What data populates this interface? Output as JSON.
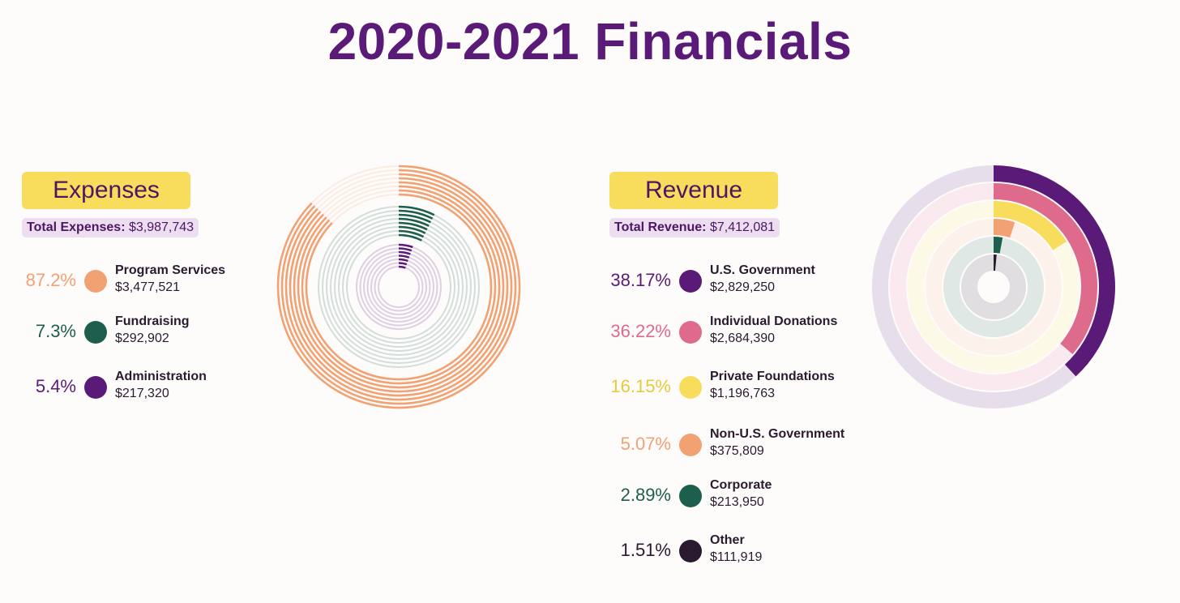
{
  "title": "2020-2021 Financials",
  "expenses": {
    "heading": "Expenses",
    "total_label": "Total Expenses:",
    "total_value": "$3,987,743",
    "items": [
      {
        "pct": "87.2%",
        "name": "Program Services",
        "amount": "$3,477,521",
        "color": "#f2a173"
      },
      {
        "pct": "7.3%",
        "name": "Fundraising",
        "amount": "$292,902",
        "color": "#1d5e4c"
      },
      {
        "pct": "5.4%",
        "name": "Administration",
        "amount": "$217,320",
        "color": "#5a1a78"
      }
    ]
  },
  "revenue": {
    "heading": "Revenue",
    "total_label": "Total Revenue:",
    "total_value": "$7,412,081",
    "items": [
      {
        "pct": "38.17%",
        "name": "U.S. Government",
        "amount": "$2,829,250",
        "color": "#5a1a78"
      },
      {
        "pct": "36.22%",
        "name": "Individual Donations",
        "amount": "$2,684,390",
        "color": "#de6b8b"
      },
      {
        "pct": "16.15%",
        "name": "Private Foundations",
        "amount": "$1,196,763",
        "color": "#f8dc5c"
      },
      {
        "pct": "5.07%",
        "name": "Non-U.S. Government",
        "amount": "$375,809",
        "color": "#f2a173"
      },
      {
        "pct": "2.89%",
        "name": "Corporate",
        "amount": "$213,950",
        "color": "#1d5e4c"
      },
      {
        "pct": "1.51%",
        "name": "Other",
        "amount": "$111,919",
        "color": "#2a1a30"
      }
    ]
  },
  "chart_data": [
    {
      "type": "radial-bar",
      "title": "Expenses",
      "categories": [
        "Program Services",
        "Fundraising",
        "Administration"
      ],
      "values": [
        87.2,
        7.3,
        5.4
      ],
      "amounts": [
        3477521,
        292902,
        217320
      ],
      "colors": [
        "#f2a173",
        "#1d5e4c",
        "#5a1a78"
      ],
      "scale_max": 100
    },
    {
      "type": "radial-bar",
      "title": "Revenue",
      "categories": [
        "U.S. Government",
        "Individual Donations",
        "Private Foundations",
        "Non-U.S. Government",
        "Corporate",
        "Other"
      ],
      "values": [
        38.17,
        36.22,
        16.15,
        5.07,
        2.89,
        1.51
      ],
      "amounts": [
        2829250,
        2684390,
        1196763,
        375809,
        213950,
        111919
      ],
      "colors": [
        "#5a1a78",
        "#de6b8b",
        "#f8dc5c",
        "#f2a173",
        "#1d5e4c",
        "#2a1a30"
      ],
      "scale_max": 100
    }
  ]
}
